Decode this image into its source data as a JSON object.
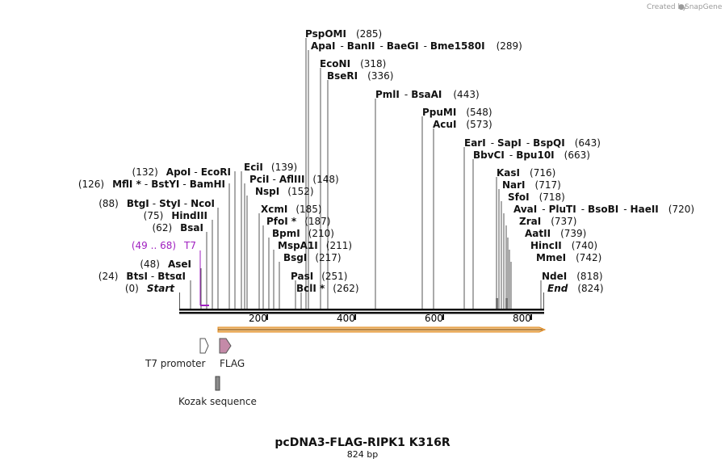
{
  "credit": {
    "text": "Created by",
    "brand": "SnapGene"
  },
  "title": "pcDNA3-FLAG-RIPK1 K316R",
  "subtitle": "824 bp",
  "sequence_length": 824,
  "axis": {
    "ticks": [
      {
        "value": 200,
        "label": "200"
      },
      {
        "value": 400,
        "label": "400"
      },
      {
        "value": 600,
        "label": "600"
      },
      {
        "value": 800,
        "label": "800"
      }
    ]
  },
  "labels": [
    {
      "id": "start",
      "pos": "(0)",
      "names": [
        "Start"
      ],
      "italic": true
    },
    {
      "id": "btsi",
      "pos": "(24)",
      "names": [
        "BtsI",
        "BtsαI"
      ]
    },
    {
      "id": "asei",
      "pos": "(48)",
      "names": [
        "AseI"
      ]
    },
    {
      "id": "t7",
      "pos": "(49 .. 68)",
      "names": [
        "T7"
      ],
      "color": "#a020c0"
    },
    {
      "id": "bsai",
      "pos": "(62)",
      "names": [
        "BsaI"
      ]
    },
    {
      "id": "hindiii",
      "pos": "(75)",
      "names": [
        "HindIII"
      ]
    },
    {
      "id": "btgi",
      "pos": "(88)",
      "names": [
        "BtgI",
        "StyI",
        "NcoI"
      ]
    },
    {
      "id": "mfli",
      "pos": "(126)",
      "names": [
        "MflI *",
        "BstYI",
        "BamHI"
      ]
    },
    {
      "id": "apoi",
      "pos": "(132)",
      "names": [
        "ApoI",
        "EcoRI"
      ]
    },
    {
      "id": "ecii",
      "pos": "(139)",
      "names": [
        "EciI"
      ]
    },
    {
      "id": "pcii",
      "pos": "(148)",
      "names": [
        "PciI",
        "AflIII"
      ]
    },
    {
      "id": "nspi",
      "pos": "(152)",
      "names": [
        "NspI"
      ]
    },
    {
      "id": "xcmi",
      "pos": "(185)",
      "names": [
        "XcmI"
      ]
    },
    {
      "id": "pfoi",
      "pos": "(187)",
      "names": [
        "PfoI *"
      ]
    },
    {
      "id": "bpmi",
      "pos": "(210)",
      "names": [
        "BpmI"
      ]
    },
    {
      "id": "mspa1i",
      "pos": "(211)",
      "names": [
        "MspA1I"
      ]
    },
    {
      "id": "bsgi",
      "pos": "(217)",
      "names": [
        "BsgI"
      ]
    },
    {
      "id": "pasi",
      "pos": "(251)",
      "names": [
        "PasI"
      ]
    },
    {
      "id": "bcli",
      "pos": "(262)",
      "names": [
        "BclI *"
      ]
    },
    {
      "id": "pspomi",
      "pos": "(285)",
      "names": [
        "PspOMI"
      ]
    },
    {
      "id": "apai",
      "pos": "(289)",
      "names": [
        "ApaI",
        "BanII",
        "BaeGI",
        "Bme1580I"
      ]
    },
    {
      "id": "ecoNI",
      "pos": "(318)",
      "names": [
        "EcoNI"
      ]
    },
    {
      "id": "bseri",
      "pos": "(336)",
      "names": [
        "BseRI"
      ]
    },
    {
      "id": "pmli",
      "pos": "(443)",
      "names": [
        "PmlI",
        "BsaAI"
      ]
    },
    {
      "id": "ppumi",
      "pos": "(548)",
      "names": [
        "PpuMI"
      ]
    },
    {
      "id": "acui",
      "pos": "(573)",
      "names": [
        "AcuI"
      ]
    },
    {
      "id": "eari",
      "pos": "(643)",
      "names": [
        "EarI",
        "SapI",
        "BspQI"
      ]
    },
    {
      "id": "bbvci",
      "pos": "(663)",
      "names": [
        "BbvCI",
        "Bpu10I"
      ]
    },
    {
      "id": "kasi",
      "pos": "(716)",
      "names": [
        "KasI"
      ]
    },
    {
      "id": "nari",
      "pos": "(717)",
      "names": [
        "NarI"
      ]
    },
    {
      "id": "sfoi",
      "pos": "(718)",
      "names": [
        "SfoI"
      ]
    },
    {
      "id": "avai",
      "pos": "(720)",
      "names": [
        "AvaI",
        "PluTI",
        "BsoBI",
        "HaeII"
      ]
    },
    {
      "id": "zrai",
      "pos": "(737)",
      "names": [
        "ZraI"
      ]
    },
    {
      "id": "aatii",
      "pos": "(739)",
      "names": [
        "AatII"
      ]
    },
    {
      "id": "hincii",
      "pos": "(740)",
      "names": [
        "HincII"
      ]
    },
    {
      "id": "mmei",
      "pos": "(742)",
      "names": [
        "MmeI"
      ]
    },
    {
      "id": "ndei",
      "pos": "(818)",
      "names": [
        "NdeI"
      ]
    },
    {
      "id": "end",
      "pos": "(824)",
      "names": [
        "End"
      ],
      "italic": true
    }
  ],
  "features": {
    "t7_promoter": "T7 promoter",
    "flag": "FLAG",
    "kozak": "Kozak sequence"
  },
  "colors": {
    "t7": "#a020c0",
    "orf_fill": "#f0c080",
    "orf_stroke": "#e08a1e",
    "flag_fill": "#c48aa8",
    "kozak_fill": "#8c8c8c"
  }
}
